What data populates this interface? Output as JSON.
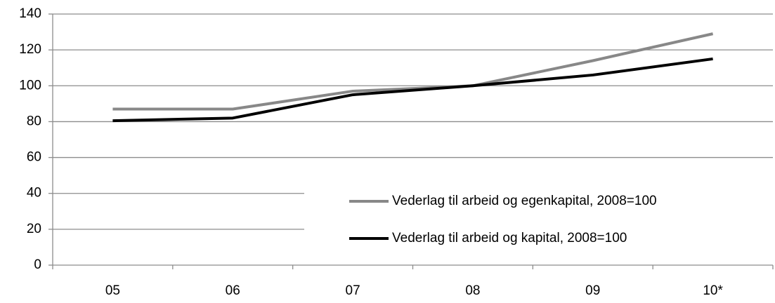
{
  "chart_data": {
    "type": "line",
    "categories": [
      "05",
      "06",
      "07",
      "08",
      "09",
      "10*"
    ],
    "series": [
      {
        "name": "Vederlag til arbeid og egenkapital, 2008=100",
        "color": "#888888",
        "values": [
          87,
          87,
          97,
          100,
          114,
          129
        ]
      },
      {
        "name": "Vederlag til arbeid og kapital, 2008=100",
        "color": "#000000",
        "values": [
          80.5,
          82,
          95,
          100,
          106,
          115
        ]
      }
    ],
    "ylim": [
      0,
      140
    ],
    "yticks": [
      0,
      20,
      40,
      60,
      80,
      100,
      120,
      140
    ],
    "grid": true,
    "legend": "lower-right"
  }
}
